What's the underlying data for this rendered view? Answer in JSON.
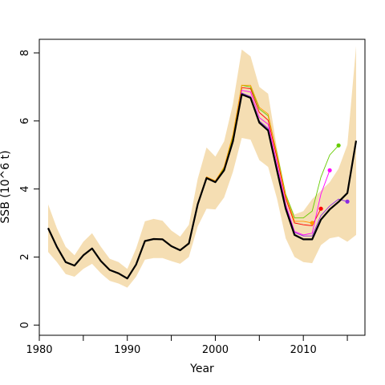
{
  "chart_data": {
    "type": "line",
    "xlabel": "Year",
    "ylabel": "SSB (10^6 t)",
    "xlim": [
      1980,
      2017
    ],
    "ylim": [
      -0.3,
      8.4
    ],
    "xticks": [
      1980,
      1990,
      2000,
      2010
    ],
    "xticks_minor": [
      1985,
      1995,
      2005,
      2015
    ],
    "yticks": [
      0,
      2,
      4,
      6,
      8
    ],
    "grid": false,
    "colors": {
      "band": "#f5deb3",
      "final": "#000000",
      "retro": [
        "#ff0000",
        "#ff00ff",
        "#66cc00",
        "#ff9900",
        "#8a2be2"
      ]
    },
    "confidence_band": {
      "x": [
        1981,
        1982,
        1983,
        1984,
        1985,
        1986,
        1987,
        1988,
        1989,
        1990,
        1991,
        1992,
        1993,
        1994,
        1995,
        1996,
        1997,
        1998,
        1999,
        2000,
        2001,
        2002,
        2003,
        2004,
        2005,
        2006,
        2007,
        2008,
        2009,
        2010,
        2011,
        2012,
        2013,
        2014,
        2015,
        2016
      ],
      "lower": [
        2.15,
        1.85,
        1.5,
        1.42,
        1.65,
        1.8,
        1.52,
        1.3,
        1.22,
        1.1,
        1.42,
        1.92,
        1.97,
        1.97,
        1.88,
        1.8,
        2.0,
        2.9,
        3.42,
        3.4,
        3.75,
        4.5,
        5.5,
        5.45,
        4.85,
        4.65,
        3.72,
        2.55,
        2.0,
        1.85,
        1.82,
        2.35,
        2.55,
        2.6,
        2.45,
        2.65
      ],
      "upper": [
        3.55,
        2.85,
        2.3,
        2.05,
        2.45,
        2.7,
        2.3,
        1.95,
        1.85,
        1.65,
        2.25,
        3.05,
        3.12,
        3.07,
        2.78,
        2.6,
        2.95,
        4.3,
        5.22,
        4.95,
        5.4,
        6.5,
        8.1,
        7.9,
        7.0,
        6.8,
        5.2,
        3.85,
        3.25,
        3.35,
        3.7,
        3.95,
        4.2,
        4.6,
        5.3,
        8.2
      ]
    },
    "series": [
      {
        "x": [
          1981,
          1982,
          1983,
          1984,
          1985,
          1986,
          1987,
          1988,
          1989,
          1990,
          1991,
          1992,
          1993,
          1994,
          1995,
          1996,
          1997,
          1998,
          1999,
          2000,
          2001,
          2002,
          2003,
          2004,
          2005,
          2006,
          2007,
          2008,
          2009,
          2010,
          2011,
          2012,
          2013,
          2014,
          2015,
          2016
        ],
        "y": [
          2.85,
          2.3,
          1.85,
          1.75,
          2.05,
          2.25,
          1.88,
          1.62,
          1.52,
          1.37,
          1.78,
          2.47,
          2.53,
          2.52,
          2.32,
          2.2,
          2.4,
          3.55,
          4.32,
          4.2,
          4.55,
          5.4,
          6.78,
          6.68,
          5.95,
          5.72,
          4.55,
          3.42,
          2.65,
          2.52,
          2.52,
          3.1,
          3.4,
          3.62,
          3.88,
          5.42
        ]
      },
      {
        "x": [
          1981,
          1982,
          1983,
          1984,
          1985,
          1986,
          1987,
          1988,
          1989,
          1990,
          1991,
          1992,
          1993,
          1994,
          1995,
          1996,
          1997,
          1998,
          1999,
          2000,
          2001,
          2002,
          2003,
          2004,
          2005,
          2006,
          2007,
          2008,
          2009,
          2010,
          2011,
          2012
        ],
        "y": [
          2.85,
          2.3,
          1.85,
          1.75,
          2.05,
          2.25,
          1.88,
          1.62,
          1.52,
          1.37,
          1.78,
          2.47,
          2.53,
          2.52,
          2.32,
          2.2,
          2.42,
          3.58,
          4.35,
          4.22,
          4.6,
          5.5,
          6.98,
          6.95,
          6.25,
          6.02,
          4.92,
          3.72,
          3.0,
          2.95,
          2.92,
          3.42
        ]
      },
      {
        "x": [
          1981,
          1982,
          1983,
          1984,
          1985,
          1986,
          1987,
          1988,
          1989,
          1990,
          1991,
          1992,
          1993,
          1994,
          1995,
          1996,
          1997,
          1998,
          1999,
          2000,
          2001,
          2002,
          2003,
          2004,
          2005,
          2006,
          2007,
          2008,
          2009,
          2010,
          2011,
          2012,
          2013
        ],
        "y": [
          2.85,
          2.3,
          1.85,
          1.75,
          2.05,
          2.25,
          1.88,
          1.62,
          1.52,
          1.37,
          1.78,
          2.47,
          2.53,
          2.52,
          2.32,
          2.2,
          2.41,
          3.56,
          4.33,
          4.21,
          4.57,
          5.45,
          6.9,
          6.85,
          6.1,
          5.9,
          4.75,
          3.55,
          2.75,
          2.65,
          2.7,
          3.85,
          4.55
        ]
      },
      {
        "x": [
          1981,
          1982,
          1983,
          1984,
          1985,
          1986,
          1987,
          1988,
          1989,
          1990,
          1991,
          1992,
          1993,
          1994,
          1995,
          1996,
          1997,
          1998,
          1999,
          2000,
          2001,
          2002,
          2003,
          2004,
          2005,
          2006,
          2007,
          2008,
          2009,
          2010,
          2011,
          2012,
          2013,
          2014
        ],
        "y": [
          2.85,
          2.3,
          1.85,
          1.75,
          2.05,
          2.25,
          1.88,
          1.62,
          1.52,
          1.37,
          1.78,
          2.47,
          2.53,
          2.52,
          2.32,
          2.2,
          2.42,
          3.57,
          4.34,
          4.22,
          4.62,
          5.55,
          7.05,
          7.0,
          6.35,
          6.15,
          5.05,
          3.85,
          3.15,
          3.15,
          3.35,
          4.35,
          5.0,
          5.28
        ]
      },
      {
        "x": [
          1981,
          1982,
          1983,
          1984,
          1985,
          1986,
          1987,
          1988,
          1989,
          1990,
          1991,
          1992,
          1993,
          1994,
          1995,
          1996,
          1997,
          1998,
          1999,
          2000,
          2001,
          2002,
          2003,
          2004,
          2005,
          2006,
          2007,
          2008,
          2009,
          2010,
          2011
        ],
        "y": [
          2.85,
          2.3,
          1.85,
          1.75,
          2.05,
          2.25,
          1.88,
          1.62,
          1.52,
          1.37,
          1.78,
          2.47,
          2.53,
          2.52,
          2.32,
          2.2,
          2.42,
          3.58,
          4.36,
          4.24,
          4.65,
          5.6,
          7.05,
          7.05,
          6.4,
          6.2,
          5.0,
          3.8,
          3.05,
          3.05,
          3.0
        ]
      },
      {
        "x": [
          1981,
          1982,
          1983,
          1984,
          1985,
          1986,
          1987,
          1988,
          1989,
          1990,
          1991,
          1992,
          1993,
          1994,
          1995,
          1996,
          1997,
          1998,
          1999,
          2000,
          2001,
          2002,
          2003,
          2004,
          2005,
          2006,
          2007,
          2008,
          2009,
          2010,
          2011,
          2012,
          2013,
          2014,
          2015
        ],
        "y": [
          2.85,
          2.3,
          1.85,
          1.75,
          2.05,
          2.25,
          1.88,
          1.62,
          1.52,
          1.37,
          1.78,
          2.47,
          2.53,
          2.52,
          2.32,
          2.2,
          2.4,
          3.55,
          4.32,
          4.2,
          4.55,
          5.42,
          6.82,
          6.72,
          6.0,
          5.78,
          4.6,
          3.48,
          2.72,
          2.62,
          2.62,
          3.22,
          3.5,
          3.7,
          3.63
        ]
      }
    ]
  }
}
